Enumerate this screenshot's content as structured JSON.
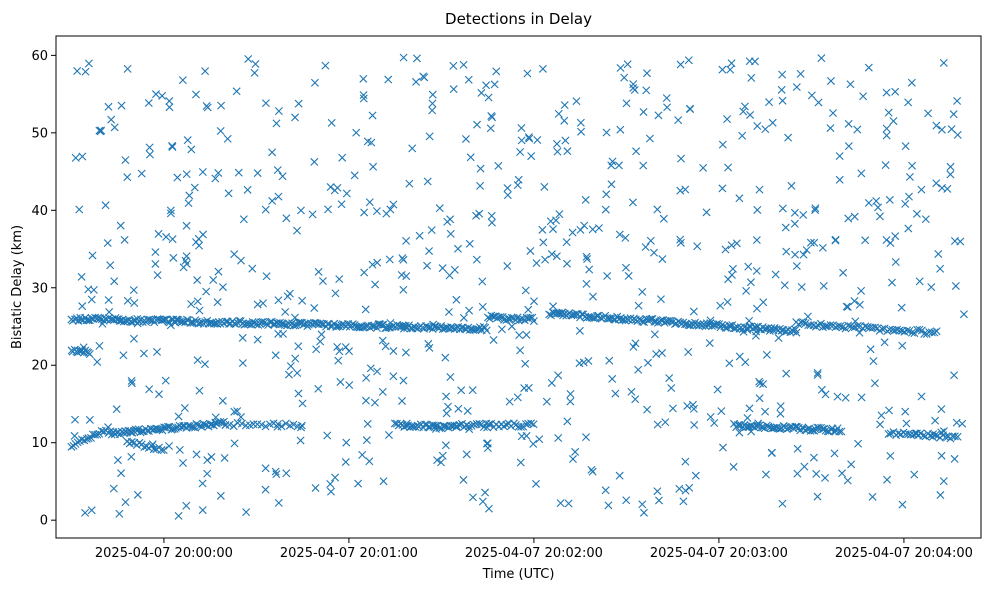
{
  "chart_data": {
    "type": "scatter",
    "title": "Detections in Delay",
    "xlabel": "Time (UTC)",
    "ylabel": "Bistatic Delay (km)",
    "marker": "x",
    "color": "#1f77b4",
    "grid": false,
    "legend": "none",
    "xlim": [
      "2025-04-07 19:59:25",
      "2025-04-07 20:04:25"
    ],
    "ylim": [
      -2.3,
      62.5
    ],
    "x_ticks": [
      "2025-04-07 20:00:00",
      "2025-04-07 20:01:00",
      "2025-04-07 20:02:00",
      "2025-04-07 20:03:00",
      "2025-04-07 20:04:00"
    ],
    "y_ticks": [
      0,
      10,
      20,
      30,
      40,
      50,
      60
    ],
    "tracks": [
      {
        "start": "2025-04-07 19:59:30",
        "end": "2025-04-07 20:01:45",
        "start_km": 26.0,
        "end_km": 24.7,
        "step_s": 0.55
      },
      {
        "start": "2025-04-07 20:01:45",
        "end": "2025-04-07 20:02:00",
        "start_km": 26.2,
        "end_km": 25.9,
        "step_s": 0.6
      },
      {
        "start": "2025-04-07 20:02:05",
        "end": "2025-04-07 20:03:25",
        "start_km": 26.7,
        "end_km": 24.4,
        "step_s": 0.55
      },
      {
        "start": "2025-04-07 20:03:25",
        "end": "2025-04-07 20:04:10",
        "start_km": 25.4,
        "end_km": 24.2,
        "step_s": 0.8
      },
      {
        "start": "2025-04-07 19:59:30",
        "end": "2025-04-07 19:59:36",
        "start_km": 22.0,
        "end_km": 21.6,
        "step_s": 0.5
      },
      {
        "start": "2025-04-07 19:59:30",
        "end": "2025-04-07 19:59:42",
        "start_km": 9.6,
        "end_km": 11.8,
        "step_s": 0.7
      },
      {
        "start": "2025-04-07 19:59:42",
        "end": "2025-04-07 20:00:20",
        "start_km": 11.2,
        "end_km": 12.5,
        "step_s": 0.55
      },
      {
        "start": "2025-04-07 19:59:48",
        "end": "2025-04-07 20:00:00",
        "start_km": 10.1,
        "end_km": 9.0,
        "step_s": 0.8
      },
      {
        "start": "2025-04-07 20:00:20",
        "end": "2025-04-07 20:00:45",
        "start_km": 12.4,
        "end_km": 12.2,
        "step_s": 1.3
      },
      {
        "start": "2025-04-07 20:01:15",
        "end": "2025-04-07 20:01:35",
        "start_km": 12.3,
        "end_km": 12.0,
        "step_s": 0.6
      },
      {
        "start": "2025-04-07 20:01:35",
        "end": "2025-04-07 20:02:00",
        "start_km": 12.2,
        "end_km": 12.3,
        "step_s": 0.8
      },
      {
        "start": "2025-04-07 20:03:05",
        "end": "2025-04-07 20:03:40",
        "start_km": 12.2,
        "end_km": 11.6,
        "step_s": 0.55
      },
      {
        "start": "2025-04-07 20:03:55",
        "end": "2025-04-07 20:04:18",
        "start_km": 11.2,
        "end_km": 10.7,
        "step_s": 0.8
      }
    ],
    "noise_samples": 780,
    "noise_range_km": [
      0.5,
      59.8
    ]
  }
}
